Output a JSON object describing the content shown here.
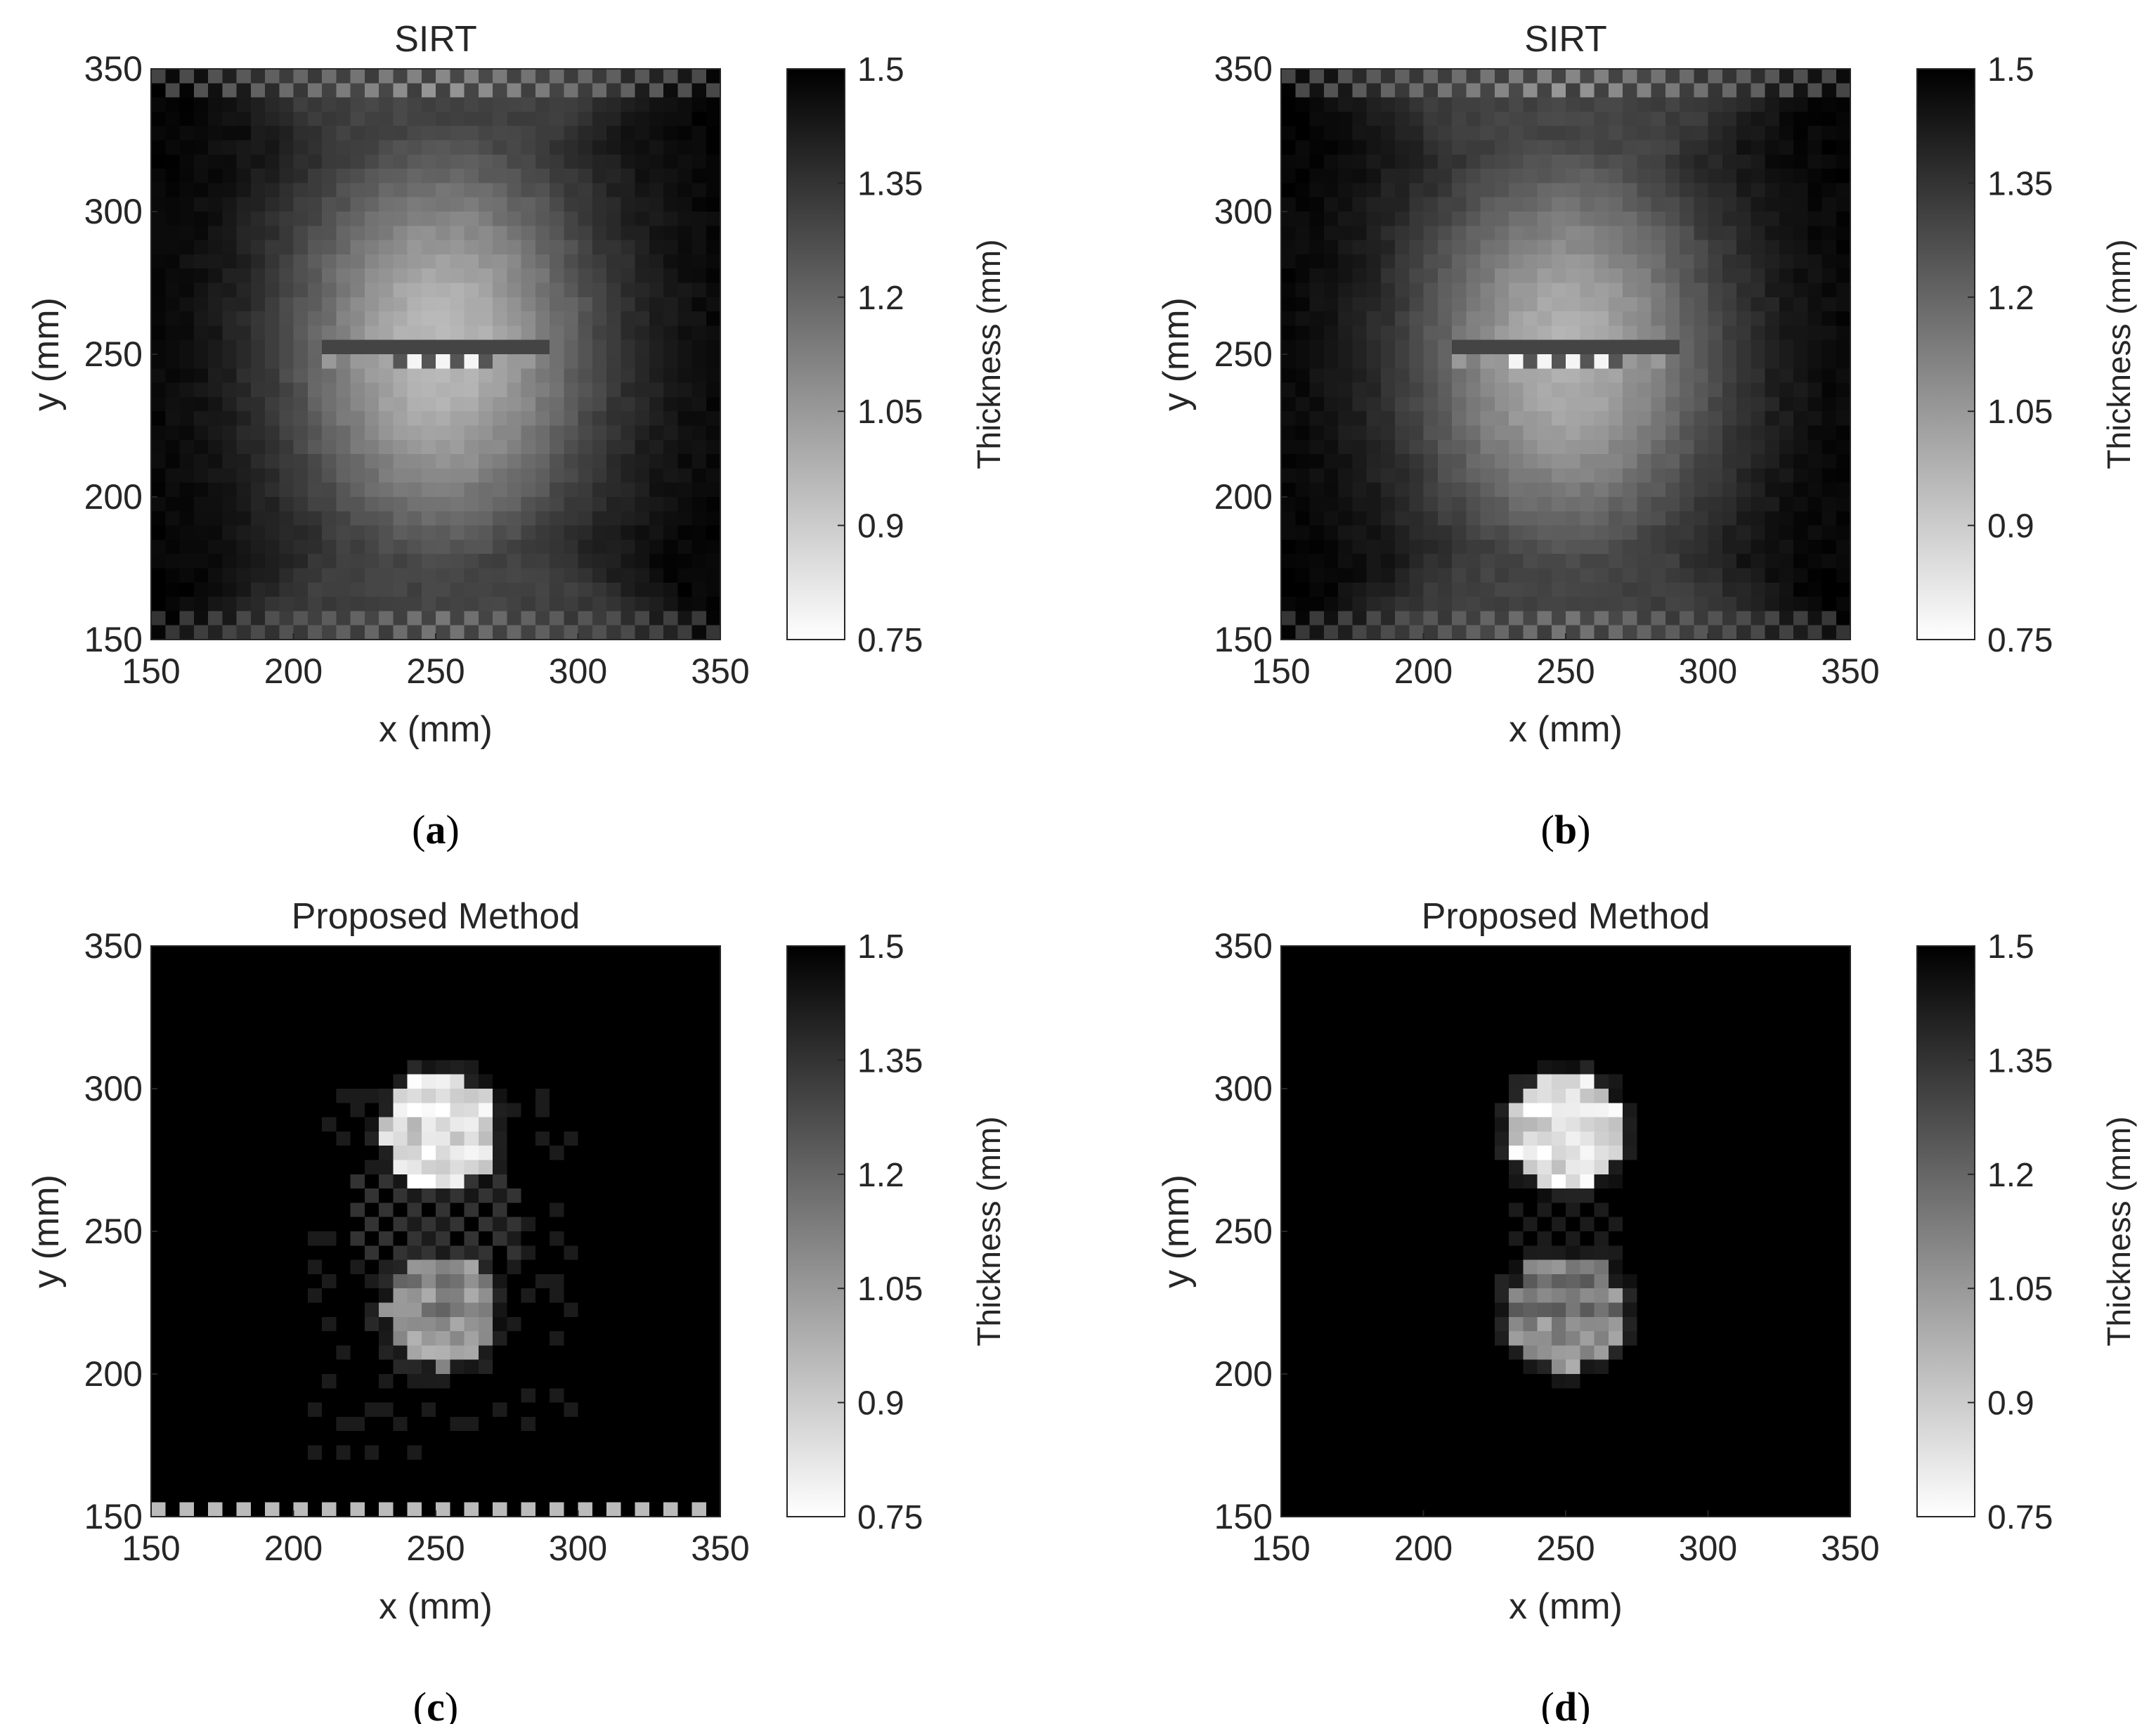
{
  "figure": {
    "colormap": "gray (reversed: 0.75 = white, 1.5 = black)",
    "colors": {
      "background": "#ffffff",
      "axis": "#262626",
      "max_value": "#000000",
      "min_value": "#ffffff"
    }
  },
  "chart_data": [
    {
      "panel": "(a)",
      "caption_letter": "a",
      "type": "heatmap",
      "title": "SIRT",
      "xlabel": "x (mm)",
      "ylabel": "y (mm)",
      "xlim": [
        150,
        350
      ],
      "ylim": [
        150,
        350
      ],
      "xticks": [
        "150",
        "200",
        "250",
        "300",
        "350"
      ],
      "yticks": [
        "150",
        "200",
        "250",
        "300",
        "350"
      ],
      "grid_cells": 40,
      "pixel_size_mm": 5,
      "colorbar": {
        "label": "Thickness (mm)",
        "range": [
          0.75,
          1.5
        ],
        "ticks": [
          "0.75",
          "0.9",
          "1.05",
          "1.2",
          "1.35",
          "1.5"
        ]
      },
      "features": {
        "background_thickness_mm": 1.5,
        "hourglass_blur": {
          "center": [
            252,
            252
          ],
          "min_thickness_mm": 0.95
        },
        "edge_streaks": "top and bottom rows",
        "bright_band_y_mm": 250
      }
    },
    {
      "panel": "(b)",
      "caption_letter": "b",
      "type": "heatmap",
      "title": "SIRT",
      "xlabel": "x (mm)",
      "ylabel": "y (mm)",
      "xlim": [
        150,
        350
      ],
      "ylim": [
        150,
        350
      ],
      "xticks": [
        "150",
        "200",
        "250",
        "300",
        "350"
      ],
      "yticks": [
        "150",
        "200",
        "250",
        "300",
        "350"
      ],
      "grid_cells": 40,
      "pixel_size_mm": 5,
      "colorbar": {
        "label": "Thickness (mm)",
        "range": [
          0.75,
          1.5
        ],
        "ticks": [
          "0.75",
          "0.9",
          "1.05",
          "1.2",
          "1.35",
          "1.5"
        ]
      },
      "features": {
        "background_thickness_mm": 1.5,
        "hourglass_blur": {
          "center": [
            250,
            250
          ],
          "min_thickness_mm": 0.98
        },
        "edge_streaks": "top and bottom rows",
        "bright_band_y_mm": 250
      }
    },
    {
      "panel": "(c)",
      "caption_letter": "c",
      "type": "heatmap",
      "title": "Proposed Method",
      "xlabel": "x (mm)",
      "ylabel": "y (mm)",
      "xlim": [
        150,
        350
      ],
      "ylim": [
        150,
        350
      ],
      "xticks": [
        "150",
        "200",
        "250",
        "300",
        "350"
      ],
      "yticks": [
        "150",
        "200",
        "250",
        "300",
        "350"
      ],
      "grid_cells": 40,
      "pixel_size_mm": 5,
      "colorbar": {
        "label": "Thickness (mm)",
        "range": [
          0.75,
          1.5
        ],
        "ticks": [
          "0.75",
          "0.9",
          "1.05",
          "1.2",
          "1.35",
          "1.5"
        ]
      },
      "features": {
        "background_thickness_mm": 1.5,
        "defects": [
          {
            "center": [
              252,
              285
            ],
            "radius_mm": 20,
            "thickness_mm": 0.8
          },
          {
            "center": [
              252,
              222
            ],
            "radius_mm": 20,
            "thickness_mm": 1.05
          }
        ],
        "artifacts": "speckle between defects and bright dots along bottom row"
      }
    },
    {
      "panel": "(d)",
      "caption_letter": "d",
      "type": "heatmap",
      "title": "Proposed Method",
      "xlabel": "x (mm)",
      "ylabel": "y (mm)",
      "xlim": [
        150,
        350
      ],
      "ylim": [
        150,
        350
      ],
      "xticks": [
        "150",
        "200",
        "250",
        "300",
        "350"
      ],
      "yticks": [
        "150",
        "200",
        "250",
        "300",
        "350"
      ],
      "grid_cells": 40,
      "pixel_size_mm": 5,
      "colorbar": {
        "label": "Thickness (mm)",
        "range": [
          0.75,
          1.5
        ],
        "ticks": [
          "0.75",
          "0.9",
          "1.05",
          "1.2",
          "1.35",
          "1.5"
        ]
      },
      "features": {
        "background_thickness_mm": 1.5,
        "defects": [
          {
            "center": [
              250,
              285
            ],
            "radius_mm": 20,
            "thickness_mm": 0.8
          },
          {
            "center": [
              250,
              222
            ],
            "radius_mm": 20,
            "thickness_mm": 1.08
          }
        ],
        "artifacts": "faint speckle only"
      }
    }
  ]
}
